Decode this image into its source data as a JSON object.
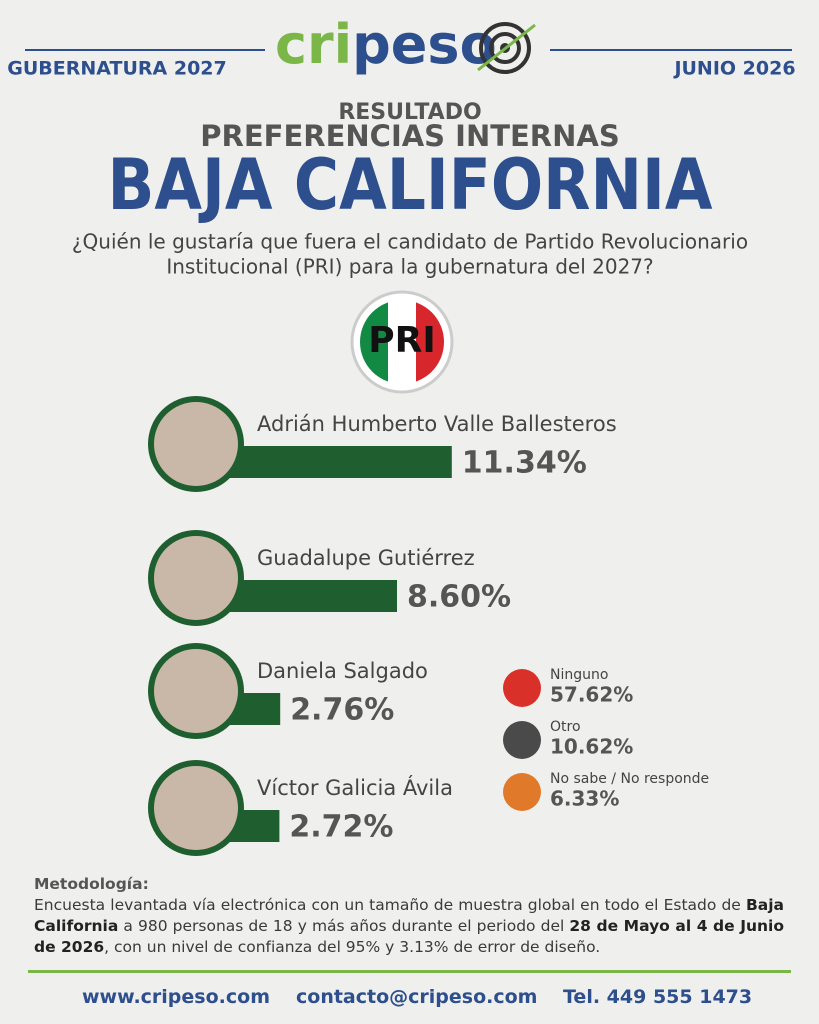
{
  "header": {
    "logo": [
      "cri",
      "peso"
    ],
    "left": "GUBERNATURA 2027",
    "right": "JUNIO 2026",
    "kicker": "RESULTADO",
    "subtitle": "PREFERENCIAS INTERNAS",
    "title": "BAJA CALIFORNIA",
    "question": [
      "¿Quién le gustaría que fuera el candidato de Partido Revolucionario",
      "Institucional (PRI) para la gubernatura del 2027?"
    ],
    "party": "PRI"
  },
  "chart_data": {
    "type": "hbar",
    "categories": [
      "Adrián Humberto Valle Ballesteros",
      "Guadalupe Gutiérrez",
      "Daniela Salgado",
      "Víctor Galicia Ávila"
    ],
    "values": [
      11.34,
      8.6,
      2.76,
      2.72
    ],
    "value_labels": [
      "11.34%",
      "8.60%",
      "2.76%",
      "2.72%"
    ],
    "color": "#1f5f2f"
  },
  "other_responses": {
    "categories": [
      "Ninguno",
      "Otro",
      "No sabe / No responde"
    ],
    "value_labels": [
      "57.62%",
      "10.62%",
      "6.33%"
    ],
    "colors": [
      "#d9302a",
      "#4a4a4a",
      "#e07a2a"
    ]
  },
  "methodology": {
    "heading": "Metodología:",
    "parts": [
      "Encuesta levantada vía electrónica con un tamaño de muestra global en todo el Estado de ",
      "Baja California",
      " a 980 personas de 18 y más años durante el periodo del ",
      "28 de Mayo al 4 de Junio de 2026",
      ", con un nivel de confianza del 95% y 3.13% de error de diseño."
    ]
  },
  "footer": [
    "www.cripeso.com",
    "contacto@cripeso.com",
    "Tel. 449 555 1473"
  ]
}
